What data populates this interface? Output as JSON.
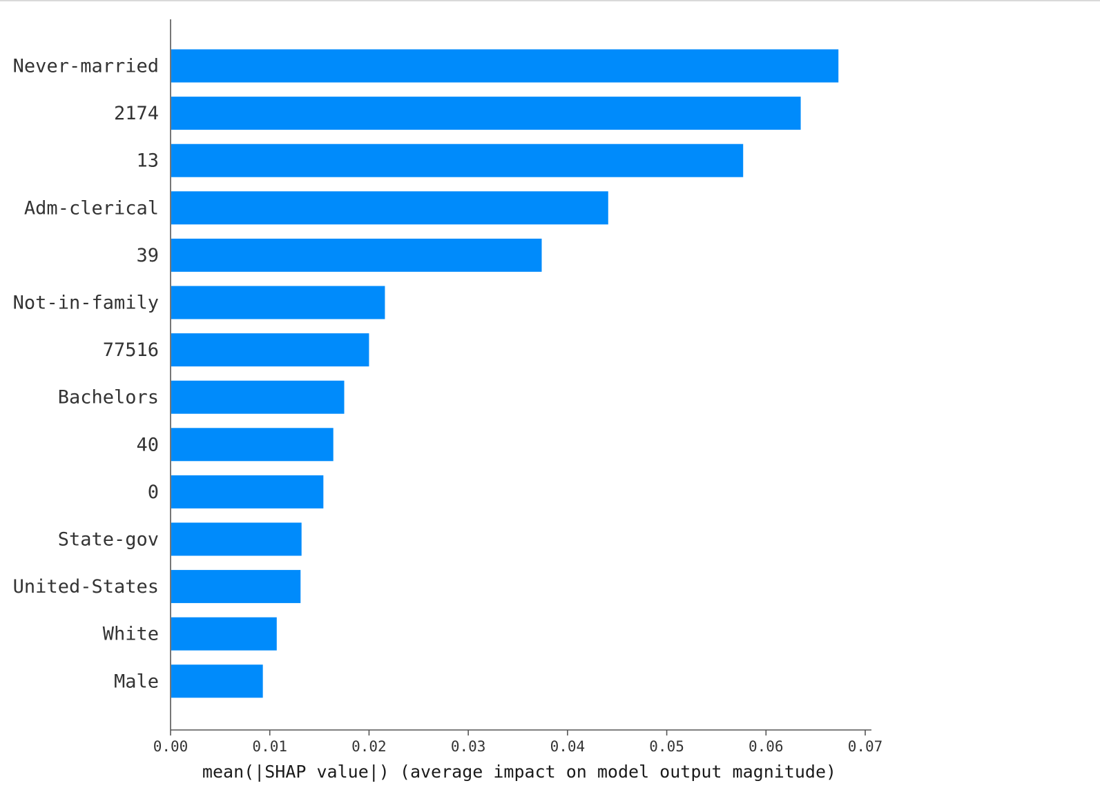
{
  "chart_data": {
    "type": "bar",
    "orientation": "horizontal",
    "categories": [
      "Never-married",
      "2174",
      "13",
      "Adm-clerical",
      "39",
      "Not-in-family",
      "77516",
      "Bachelors",
      "40",
      "0",
      "State-gov",
      "United-States",
      "White",
      "Male"
    ],
    "values": [
      0.0673,
      0.0635,
      0.0577,
      0.0441,
      0.0374,
      0.0216,
      0.02,
      0.0175,
      0.0164,
      0.0154,
      0.0132,
      0.0131,
      0.0107,
      0.0093
    ],
    "xlabel": "mean(|SHAP value|) (average impact on model output magnitude)",
    "ylabel": "",
    "xlim": [
      0,
      0.07
    ],
    "xticks": [
      "0.00",
      "0.01",
      "0.02",
      "0.03",
      "0.04",
      "0.05",
      "0.06",
      "0.07"
    ],
    "bar_color": "#008bfb",
    "grid": false
  }
}
